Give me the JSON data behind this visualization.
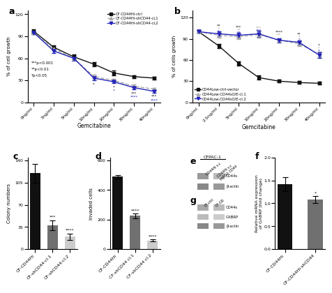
{
  "panel_a": {
    "x_labels": [
      "0ng/ml",
      "3ng/ml",
      "5ng/ml",
      "10ng/ml",
      "20ng/ml",
      "30ng/ml",
      "40ng/ml"
    ],
    "ctrl": [
      97,
      75,
      62,
      52,
      40,
      35,
      33
    ],
    "cl1": [
      95,
      73,
      60,
      35,
      30,
      22,
      18
    ],
    "cl2": [
      95,
      70,
      60,
      33,
      28,
      20,
      15
    ],
    "ctrl_err": [
      2,
      3,
      3,
      3,
      3,
      2,
      2
    ],
    "cl1_err": [
      2,
      3,
      3,
      3,
      2,
      2,
      2
    ],
    "cl2_err": [
      2,
      3,
      3,
      3,
      2,
      2,
      2
    ],
    "ylabel": "% of cell growth",
    "xlabel": "Gemcitabine",
    "ylim": [
      0,
      125
    ],
    "yticks": [
      0,
      30,
      60,
      90,
      120
    ],
    "legend": [
      "CF-CD44Hi-ctrl",
      "CF-CD44Hi-shCD44-cL1",
      "CF-CD44Hi-shCD44-cL2"
    ]
  },
  "panel_b": {
    "x_labels": [
      "0ng/ml",
      "2.5ng/ml",
      "5ng/ml",
      "10ng/ml",
      "20ng/ml",
      "30ng/ml",
      "40ng/ml"
    ],
    "ctrl": [
      100,
      80,
      55,
      35,
      30,
      28,
      27
    ],
    "cl1": [
      100,
      95,
      93,
      96,
      88,
      83,
      68
    ],
    "cl2": [
      100,
      97,
      95,
      97,
      88,
      85,
      67
    ],
    "ctrl_err": [
      2,
      3,
      3,
      3,
      2,
      2,
      2
    ],
    "cl1_err": [
      2,
      3,
      3,
      4,
      3,
      3,
      4
    ],
    "cl2_err": [
      2,
      3,
      3,
      4,
      3,
      3,
      4
    ],
    "ylabel": "% of cells growth",
    "xlabel": "Gemcitabine",
    "ylim": [
      0,
      130
    ],
    "yticks": [
      0,
      30,
      60,
      90,
      120
    ],
    "legend": [
      "CD44Low-ctrl-vector",
      "CD44Low-CD44sO/E-cl.1",
      "CD44Low-CD44sO/E-cl.2"
    ]
  },
  "panel_c": {
    "categories": [
      "CF-CD44Hi",
      "CF-shCD44-cl.1",
      "CF-shCD44-cl.2"
    ],
    "values": [
      120,
      38,
      20
    ],
    "errors": [
      15,
      8,
      5
    ],
    "colors": [
      "#111111",
      "#707070",
      "#cccccc"
    ],
    "ylabel": "Colony numbers",
    "ylim": [
      0,
      145
    ],
    "yticks": [
      0,
      35,
      70,
      105,
      140
    ],
    "sig": [
      "",
      "***",
      "****"
    ]
  },
  "panel_d": {
    "categories": [
      "CF-CD44Hi",
      "CF-shCD44 cl.1",
      "CF-shCD44 cl.2"
    ],
    "values": [
      490,
      225,
      60
    ],
    "errors": [
      12,
      18,
      8
    ],
    "colors": [
      "#111111",
      "#707070",
      "#cccccc"
    ],
    "ylabel": "Invaded cells",
    "ylim": [
      0,
      620
    ],
    "yticks": [
      0,
      200,
      400,
      600
    ],
    "sig": [
      "",
      "****",
      "****"
    ]
  },
  "panel_f": {
    "categories": [
      "CF-CD44Hi",
      "CF-CD44Hi-shCD44"
    ],
    "values": [
      1.42,
      1.08
    ],
    "errors": [
      0.15,
      0.08
    ],
    "colors": [
      "#111111",
      "#707070"
    ],
    "ylabel": "Relative mRNA expression\nof GABRP (fold change)",
    "ylim": [
      0.0,
      2.0
    ],
    "yticks": [
      0.0,
      0.5,
      1.0,
      1.5,
      2.0
    ],
    "sig": [
      "",
      "*"
    ]
  },
  "colors": {
    "black": "#111111",
    "gray": "#aaaaaa",
    "blue": "#2222bb"
  }
}
